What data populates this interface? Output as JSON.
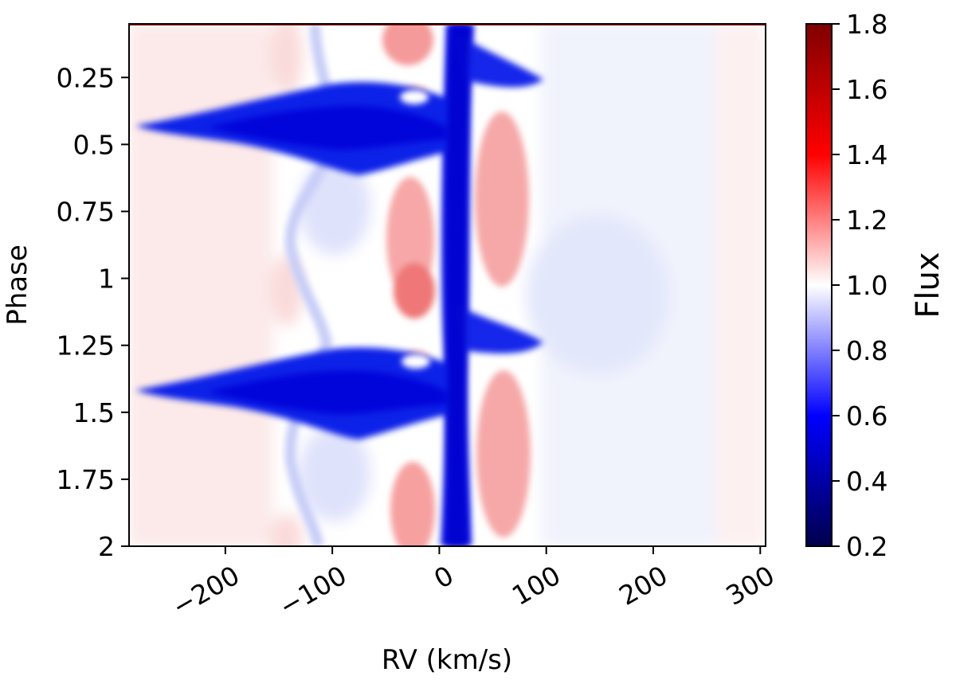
{
  "chart_data": {
    "type": "heatmap",
    "title": "",
    "xlabel": "RV (km/s)",
    "ylabel": "Phase",
    "xlim": [
      -290,
      305
    ],
    "ylim": [
      2.0,
      0.05
    ],
    "x_ticks": [
      {
        "value": -200,
        "label": "−200"
      },
      {
        "value": -100,
        "label": "−100"
      },
      {
        "value": 0,
        "label": "0"
      },
      {
        "value": 100,
        "label": "100"
      },
      {
        "value": 200,
        "label": "200"
      },
      {
        "value": 300,
        "label": "300"
      }
    ],
    "y_ticks": [
      {
        "value": 0.25,
        "label": "0.25"
      },
      {
        "value": 0.5,
        "label": "0.5"
      },
      {
        "value": 0.75,
        "label": "0.75"
      },
      {
        "value": 1.0,
        "label": "1"
      },
      {
        "value": 1.25,
        "label": "1.25"
      },
      {
        "value": 1.5,
        "label": "1.5"
      },
      {
        "value": 1.75,
        "label": "1.75"
      },
      {
        "value": 2.0,
        "label": "2"
      }
    ],
    "colorbar": {
      "label": "Flux",
      "range": [
        0.2,
        1.8
      ],
      "colormap": "seismic",
      "colors": [
        "#00004c",
        "#0000ff",
        "#ffffff",
        "#ff0000",
        "#7f0000"
      ],
      "ticks": [
        {
          "value": 0.2,
          "label": "0.2"
        },
        {
          "value": 0.4,
          "label": "0.4"
        },
        {
          "value": 0.6,
          "label": "0.6"
        },
        {
          "value": 0.8,
          "label": "0.8"
        },
        {
          "value": 1.0,
          "label": "1.0"
        },
        {
          "value": 1.2,
          "label": "1.2"
        },
        {
          "value": 1.4,
          "label": "1.4"
        },
        {
          "value": 1.6,
          "label": "1.6"
        },
        {
          "value": 1.8,
          "label": "1.8"
        }
      ]
    },
    "features": [
      {
        "name": "central absorption",
        "rv_center": 12,
        "flux_min": 0.55,
        "phase_range": [
          0.05,
          2.0
        ]
      },
      {
        "name": "blue absorption wing 1",
        "phase_center": 0.38,
        "rv_extent": [
          -270,
          12
        ],
        "flux_min": 0.58
      },
      {
        "name": "blue absorption wing 2",
        "phase_center": 1.38,
        "rv_extent": [
          -270,
          12
        ],
        "flux_min": 0.58
      },
      {
        "name": "red emission lobe",
        "rv_center": 60,
        "flux_max": 1.2
      },
      {
        "name": "red emission lobe",
        "rv_center": -25,
        "flux_max": 1.3
      }
    ]
  }
}
